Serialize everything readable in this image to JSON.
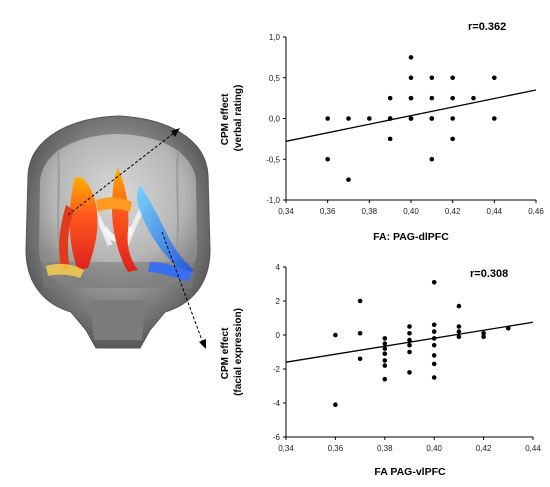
{
  "chart_data": [
    {
      "type": "scatter",
      "annotation": "r=0.362",
      "xlabel": "FA: PAG-dlPFC",
      "ylabel_lines": [
        "CPM effect",
        "(verbal rating)"
      ],
      "xlim": [
        0.34,
        0.46
      ],
      "ylim": [
        -1.0,
        1.0
      ],
      "xticks": [
        0.34,
        0.36,
        0.38,
        0.4,
        0.42,
        0.44,
        0.46
      ],
      "xtick_labels": [
        "0,34",
        "0,36",
        "0,38",
        "0,40",
        "0,42",
        "0,44",
        "0,46"
      ],
      "yticks": [
        1.0,
        0.5,
        0.0,
        -0.5,
        -1.0
      ],
      "ytick_labels": [
        "1,0",
        "0,5",
        "0,0",
        "-0,5",
        "-1,0"
      ],
      "points": [
        [
          0.36,
          0.0
        ],
        [
          0.36,
          -0.5
        ],
        [
          0.37,
          0.0
        ],
        [
          0.37,
          -0.75
        ],
        [
          0.38,
          0.0
        ],
        [
          0.39,
          0.0
        ],
        [
          0.39,
          0.0
        ],
        [
          0.39,
          0.25
        ],
        [
          0.39,
          -0.25
        ],
        [
          0.4,
          0.75
        ],
        [
          0.4,
          0.5
        ],
        [
          0.4,
          0.25
        ],
        [
          0.4,
          0.25
        ],
        [
          0.4,
          0.0
        ],
        [
          0.4,
          0.0
        ],
        [
          0.41,
          0.5
        ],
        [
          0.41,
          0.25
        ],
        [
          0.41,
          0.0
        ],
        [
          0.41,
          0.0
        ],
        [
          0.41,
          -0.5
        ],
        [
          0.42,
          0.5
        ],
        [
          0.42,
          0.25
        ],
        [
          0.42,
          0.0
        ],
        [
          0.42,
          -0.25
        ],
        [
          0.43,
          0.25
        ],
        [
          0.44,
          0.5
        ],
        [
          0.44,
          0.0
        ]
      ],
      "fit_line": [
        [
          0.34,
          -0.28
        ],
        [
          0.46,
          0.35
        ]
      ]
    },
    {
      "type": "scatter",
      "annotation": "r=0.308",
      "xlabel": "FA PAG-vlPFC",
      "ylabel_lines": [
        "CPM effect",
        "(facial expression)"
      ],
      "xlim": [
        0.34,
        0.44
      ],
      "ylim": [
        -6,
        4
      ],
      "xticks": [
        0.34,
        0.36,
        0.38,
        0.4,
        0.42,
        0.44
      ],
      "xtick_labels": [
        "0,34",
        "0,36",
        "0,38",
        "0,40",
        "0,42",
        "0,44"
      ],
      "yticks": [
        4,
        2,
        0,
        -2,
        -4,
        -6
      ],
      "ytick_labels": [
        "4",
        "2",
        "0",
        "-2",
        "-4",
        "-6"
      ],
      "points": [
        [
          0.36,
          0.0
        ],
        [
          0.36,
          -4.1
        ],
        [
          0.37,
          2.0
        ],
        [
          0.37,
          0.1
        ],
        [
          0.37,
          -1.4
        ],
        [
          0.38,
          -0.2
        ],
        [
          0.38,
          -0.5
        ],
        [
          0.38,
          -0.8
        ],
        [
          0.38,
          -1.1
        ],
        [
          0.38,
          -1.5
        ],
        [
          0.38,
          -1.8
        ],
        [
          0.38,
          -2.6
        ],
        [
          0.39,
          0.5
        ],
        [
          0.39,
          0.1
        ],
        [
          0.39,
          -0.3
        ],
        [
          0.39,
          -0.6
        ],
        [
          0.39,
          -1.0
        ],
        [
          0.39,
          -2.2
        ],
        [
          0.4,
          3.1
        ],
        [
          0.4,
          0.6
        ],
        [
          0.4,
          0.2
        ],
        [
          0.4,
          -0.2
        ],
        [
          0.4,
          -0.6
        ],
        [
          0.4,
          -1.2
        ],
        [
          0.4,
          -1.7
        ],
        [
          0.4,
          -2.5
        ],
        [
          0.41,
          1.7
        ],
        [
          0.41,
          0.5
        ],
        [
          0.41,
          0.2
        ],
        [
          0.41,
          -0.1
        ],
        [
          0.42,
          0.1
        ],
        [
          0.42,
          -0.1
        ],
        [
          0.43,
          0.4
        ]
      ],
      "fit_line": [
        [
          0.34,
          -1.6
        ],
        [
          0.44,
          0.75
        ]
      ]
    }
  ]
}
